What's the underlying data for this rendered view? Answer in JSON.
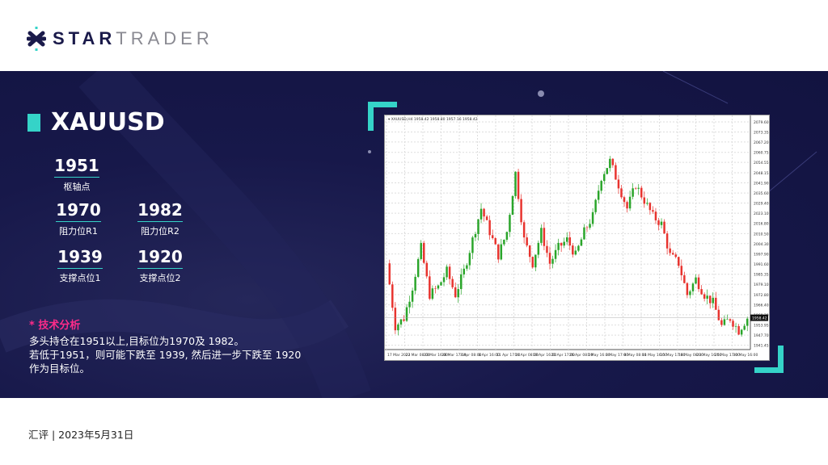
{
  "brand": {
    "bold": "STAR",
    "light": "TRADER"
  },
  "symbol": "XAUUSD",
  "levels": [
    {
      "value": "1951",
      "label": "枢轴点"
    },
    {
      "value": "1970",
      "label": "阻力位R1"
    },
    {
      "value": "1982",
      "label": "阻力位R2"
    },
    {
      "value": "1939",
      "label": "支撑点位1"
    },
    {
      "value": "1920",
      "label": "支撑点位2"
    }
  ],
  "analysis": {
    "title": "* 技术分析",
    "lines": [
      "多头持仓在1951以上,目标位为1970及 1982。",
      "若低于1951，则可能下跌至 1939, 然后进一步下跌至 1920",
      "作为目标位。"
    ]
  },
  "footer": "汇评 | 2023年5月31日",
  "colors": {
    "accent": "#35d3c8",
    "navy": "#17184a",
    "highlight": "#ff2b8a",
    "bull": "#2aa52a",
    "bear": "#e8332e"
  },
  "chart_data": {
    "type": "candlestick",
    "header": "XAUUSD,H4 1958.42 1958.80 1957.16 1958.42",
    "ylim": [
      1938.75,
      2079.6
    ],
    "yticks": [
      2079.6,
      2073.35,
      2067.2,
      2060.75,
      2054.55,
      2048.15,
      2041.9,
      2035.6,
      2029.4,
      2023.1,
      2016.8,
      2010.5,
      2004.3,
      1997.9,
      1991.6,
      1985.35,
      1979.1,
      1972.8,
      1966.4,
      1960.3,
      1953.95,
      1947.7,
      1941.45
    ],
    "current_price": "1958.42",
    "xticks": [
      "17 Mar 2023",
      "22 Mar 08:00",
      "23 Mar 16:00",
      "28 Mar 17:00",
      "3 Apr 08:00",
      "6 Apr 16:00",
      "11 Apr 17:00",
      "14 Apr 08:00",
      "19 Apr 16:00",
      "21 Apr 17:00",
      "26 Apr 08:00",
      "1 May 16:00",
      "3 May 17:00",
      "8 May 08:00",
      "11 May 16:00",
      "15 May 17:00",
      "18 May 08:00",
      "23 May 16:00",
      "25 May 17:00",
      "30 May 16:00"
    ],
    "closes": [
      1992.1,
      1953.2,
      1958.1,
      1977.5,
      2001.8,
      1972.7,
      1977.5,
      1987.3,
      1972.7,
      1987.3,
      2006.7,
      2026.1,
      2011.6,
      1997,
      2011.6,
      2048,
      2006.7,
      1992.1,
      2011.6,
      1992.1,
      2001.8,
      2006.7,
      1997,
      2011.6,
      2021.3,
      2045.6,
      2055.3,
      2040.7,
      2026.1,
      2040.7,
      2031,
      2021.3,
      2016.4,
      1997,
      1992.1,
      1972.7,
      1982.4,
      1972.7,
      1967.8,
      1953.2,
      1958.1,
      1950.5,
      1958.4
    ]
  }
}
